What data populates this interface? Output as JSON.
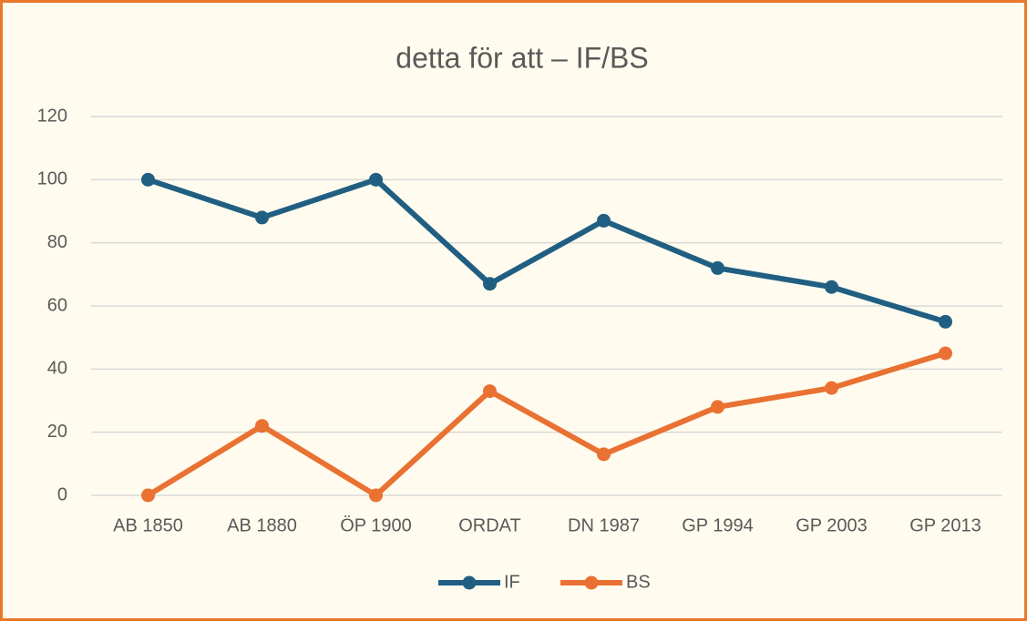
{
  "chart_data": {
    "type": "line",
    "title": "detta för att – IF/BS",
    "categories": [
      "AB 1850",
      "AB 1880",
      "ÖP 1900",
      "ORDAT",
      "DN 1987",
      "GP 1994",
      "GP 2003",
      "GP 2013"
    ],
    "series": [
      {
        "name": "IF",
        "color": "#215f82",
        "values": [
          100,
          88,
          100,
          67,
          87,
          72,
          66,
          55
        ]
      },
      {
        "name": "BS",
        "color": "#e97132",
        "values": [
          0,
          22,
          0,
          33,
          13,
          28,
          34,
          45
        ]
      }
    ],
    "ylim": [
      0,
      120
    ],
    "yticks": [
      0,
      20,
      40,
      60,
      80,
      100,
      120
    ],
    "grid": true,
    "legend": "bottom"
  }
}
